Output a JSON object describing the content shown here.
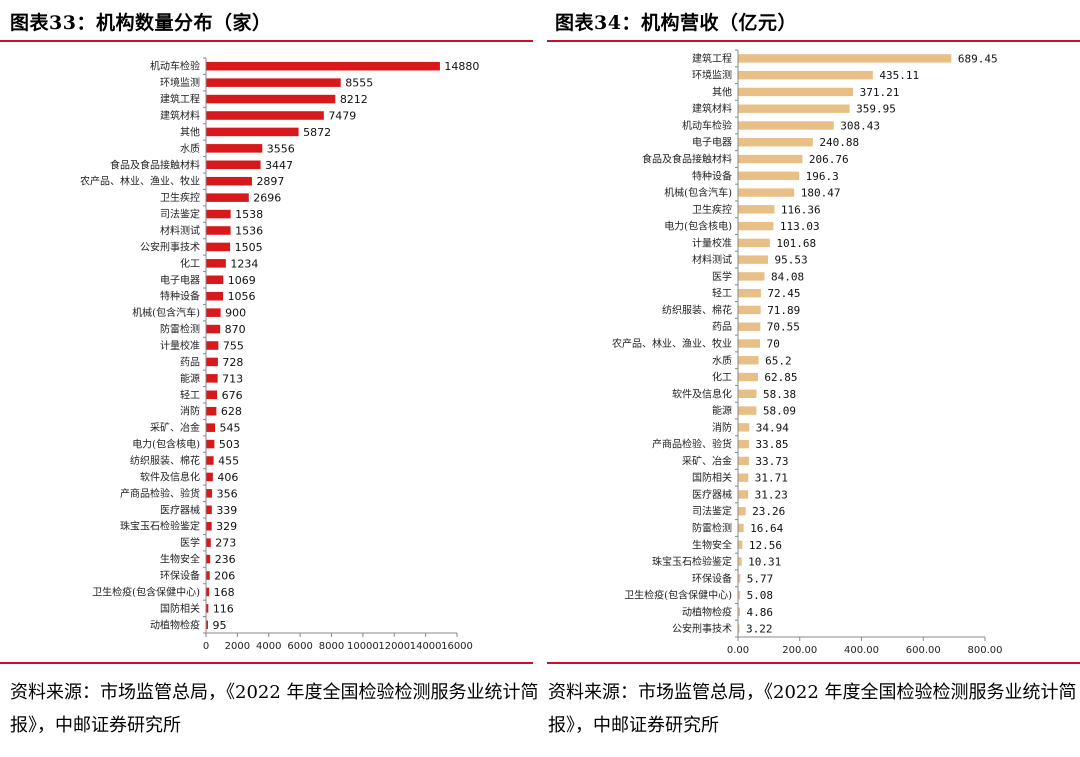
{
  "left": {
    "title": "图表33：机构数量分布（家）",
    "source": "资料来源：市场监管总局，《2022 年度全国检验检测服务业统计简报》，中邮证券研究所",
    "chart_data": {
      "type": "bar",
      "orientation": "horizontal",
      "bar_color": "#d7191c",
      "categories": [
        "机动车检验",
        "环境监测",
        "建筑工程",
        "建筑材料",
        "其他",
        "水质",
        "食品及食品接触材料",
        "农产品、林业、渔业、牧业",
        "卫生疾控",
        "司法鉴定",
        "材料测试",
        "公安刑事技术",
        "化工",
        "电子电器",
        "特种设备",
        "机械(包含汽车)",
        "防雷检测",
        "计量校准",
        "药品",
        "能源",
        "轻工",
        "消防",
        "采矿、冶金",
        "电力(包含核电)",
        "纺织服装、棉花",
        "软件及信息化",
        "产商品检验、验货",
        "医疗器械",
        "珠宝玉石检验鉴定",
        "医学",
        "生物安全",
        "环保设备",
        "卫生检疫(包含保健中心)",
        "国防相关",
        "动植物检疫"
      ],
      "values": [
        14880,
        8555,
        8212,
        7479,
        5872,
        3556,
        3447,
        2897,
        2696,
        1538,
        1536,
        1505,
        1234,
        1069,
        1056,
        900,
        870,
        755,
        728,
        713,
        676,
        628,
        545,
        503,
        455,
        406,
        356,
        339,
        329,
        273,
        236,
        206,
        168,
        116,
        95
      ],
      "xlim": [
        0,
        16000
      ],
      "xticks": [
        "0",
        "2000",
        "4000",
        "6000",
        "8000",
        "10000",
        "12000",
        "14000",
        "16000"
      ],
      "xtick_values": [
        0,
        2000,
        4000,
        6000,
        8000,
        10000,
        12000,
        14000,
        16000
      ],
      "grid": false
    }
  },
  "right": {
    "title": "图表34：机构营收（亿元）",
    "source": "资料来源：市场监管总局，《2022 年度全国检验检测服务业统计简报》，中邮证券研究所",
    "chart_data": {
      "type": "bar",
      "orientation": "horizontal",
      "bar_color": "#e8bf86",
      "categories": [
        "建筑工程",
        "环境监测",
        "其他",
        "建筑材料",
        "机动车检验",
        "电子电器",
        "食品及食品接触材料",
        "特种设备",
        "机械(包含汽车)",
        "卫生疾控",
        "电力(包含核电)",
        "计量校准",
        "材料测试",
        "医学",
        "轻工",
        "纺织服装、棉花",
        "药品",
        "农产品、林业、渔业、牧业",
        "水质",
        "化工",
        "软件及信息化",
        "能源",
        "消防",
        "产商品检验、验货",
        "采矿、冶金",
        "国防相关",
        "医疗器械",
        "司法鉴定",
        "防雷检测",
        "生物安全",
        "珠宝玉石检验鉴定",
        "环保设备",
        "卫生检疫(包含保健中心)",
        "动植物检疫",
        "公安刑事技术"
      ],
      "values": [
        689.45,
        435.11,
        371.21,
        359.95,
        308.43,
        240.88,
        206.76,
        196.3,
        180.47,
        116.36,
        113.03,
        101.68,
        95.53,
        84.08,
        72.45,
        71.89,
        70.55,
        70,
        65.2,
        62.85,
        58.38,
        58.09,
        34.94,
        33.85,
        33.73,
        31.71,
        31.23,
        23.26,
        16.64,
        12.56,
        10.31,
        5.77,
        5.08,
        4.86,
        3.22
      ],
      "value_labels": [
        "689.45",
        "435.11",
        "371.21",
        "359.95",
        "308.43",
        "240.88",
        "206.76",
        "196.3",
        "180.47",
        "116.36",
        "113.03",
        "101.68",
        "95.53",
        "84.08",
        "72.45",
        "71.89",
        "70.55",
        "70",
        "65.2",
        "62.85",
        "58.38",
        "58.09",
        "34.94",
        "33.85",
        "33.73",
        "31.71",
        "31.23",
        "23.26",
        "16.64",
        "12.56",
        "10.31",
        "5.77",
        "5.08",
        "4.86",
        "3.22"
      ],
      "xlim": [
        0,
        800
      ],
      "xticks": [
        "0.00",
        "200.00",
        "400.00",
        "600.00",
        "800.00"
      ],
      "xtick_values": [
        0,
        200,
        400,
        600,
        800
      ],
      "grid": false
    }
  }
}
